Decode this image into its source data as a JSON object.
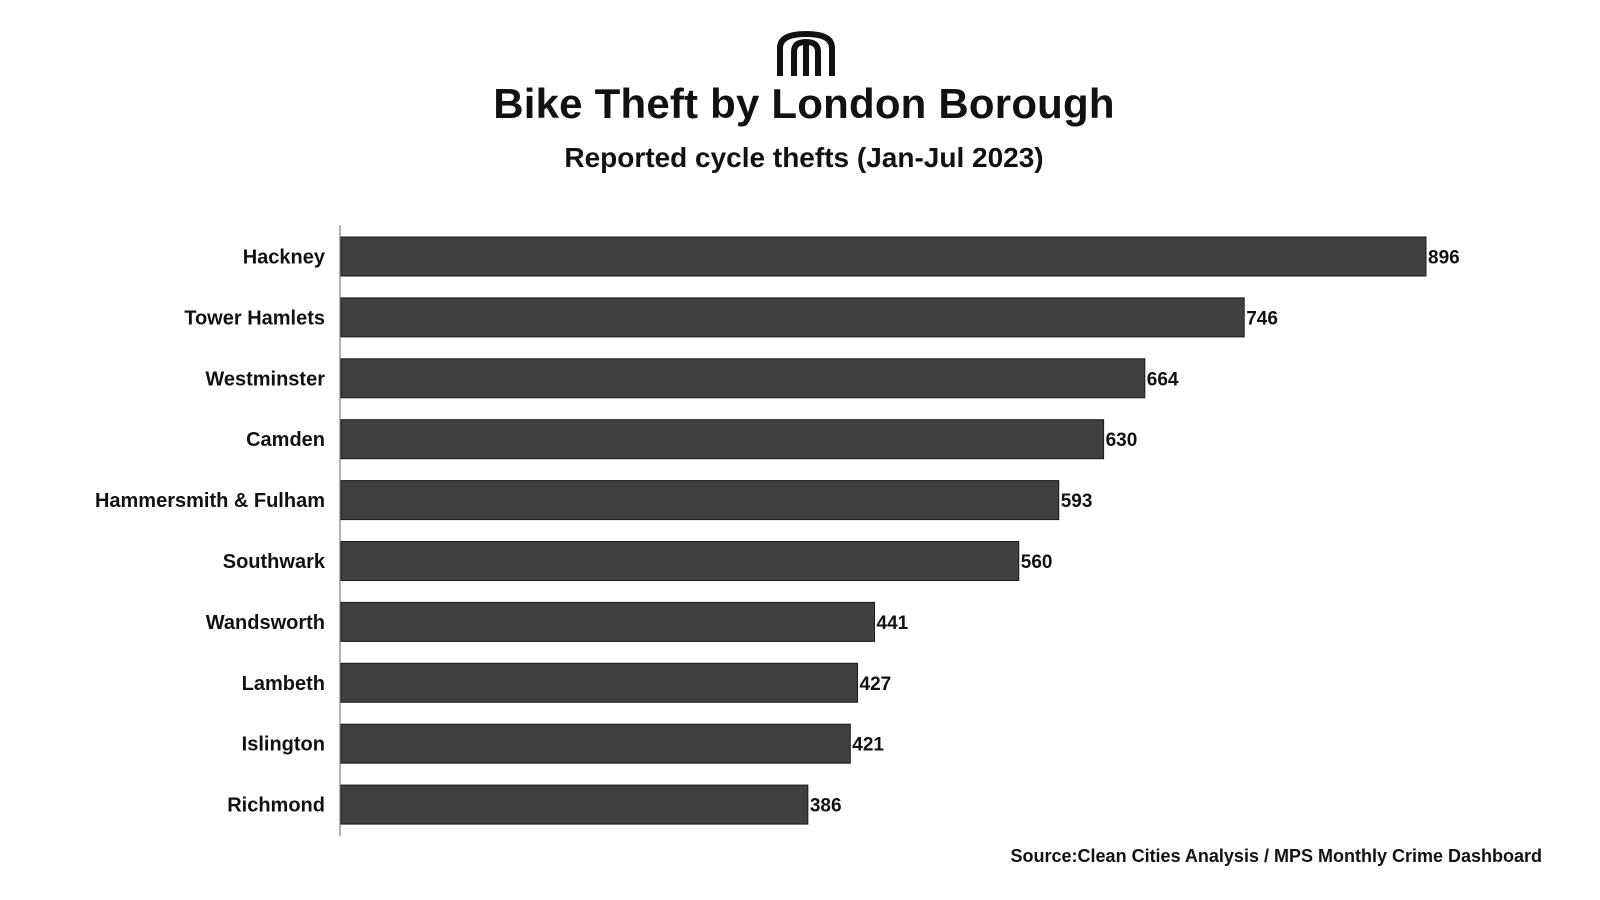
{
  "header": {
    "logo_icon": "stacked-arches-logo-icon",
    "title": "Bike Theft by London Borough",
    "subtitle": "Reported cycle thefts (Jan-Jul 2023)"
  },
  "footer": {
    "source": "Source:Clean Cities Analysis / MPS Monthly Crime Dashboard"
  },
  "chart_data": {
    "type": "bar",
    "orientation": "horizontal",
    "title": "Bike Theft by London Borough",
    "subtitle": "Reported cycle thefts (Jan-Jul 2023)",
    "categories": [
      "Hackney",
      "Tower Hamlets",
      "Westminster",
      "Camden",
      "Hammersmith & Fulham",
      "Southwark",
      "Wandsworth",
      "Lambeth",
      "Islington",
      "Richmond"
    ],
    "values": [
      896,
      746,
      664,
      630,
      593,
      560,
      441,
      427,
      421,
      386
    ],
    "data_labels": [
      "896",
      "746",
      "664",
      "630",
      "593",
      "560",
      "441",
      "427",
      "421",
      "386"
    ],
    "xlim": [
      0,
      896
    ],
    "grid": false,
    "legend": "none",
    "colors": {
      "bar": "#404040",
      "bar_edge": "#1a1a1a",
      "axis": "#999999",
      "text": "#111111"
    }
  }
}
